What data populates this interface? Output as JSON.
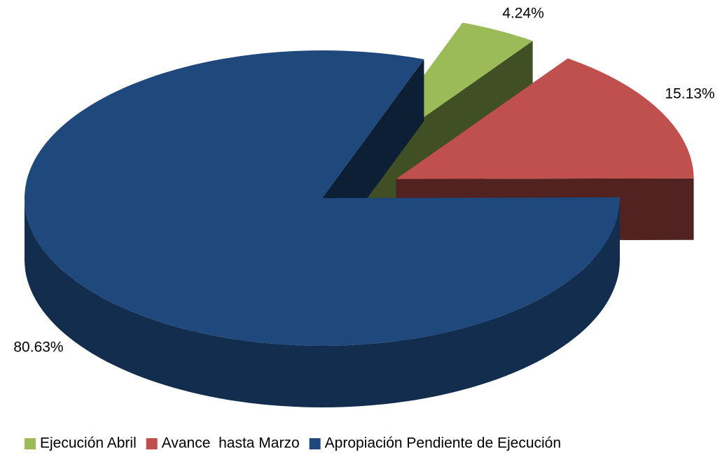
{
  "chart_data": {
    "type": "pie",
    "categories": [
      "Ejecución Abril",
      "Avance  hasta Marzo",
      "Apropiación Pendiente de Ejecución"
    ],
    "values": [
      4.24,
      15.13,
      80.63
    ],
    "value_labels": [
      "4.24%",
      "15.13%",
      "80.63%"
    ],
    "colors": [
      "#9bbb59",
      "#c0504d",
      "#1f497d"
    ],
    "legend": "bottom"
  }
}
